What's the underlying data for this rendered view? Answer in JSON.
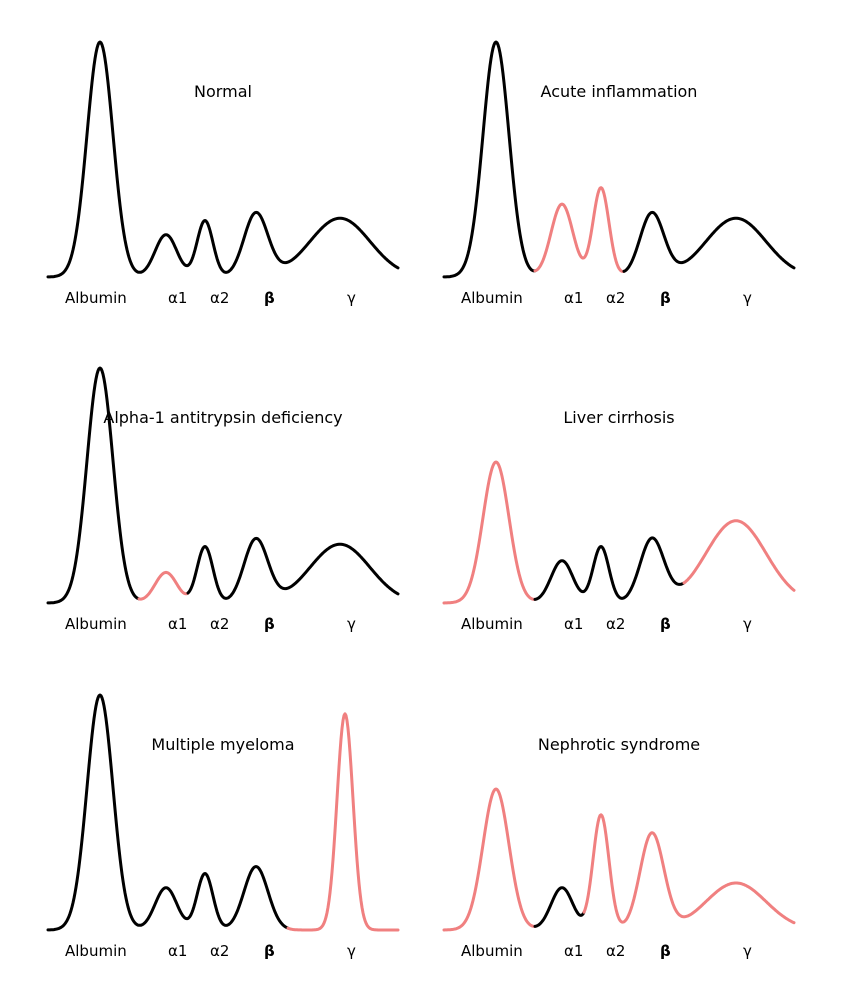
{
  "colors": {
    "normal": "#000000",
    "abnormal": "#f08080"
  },
  "band_labels": [
    "Albumin",
    "α1",
    "α2",
    "β",
    "γ"
  ],
  "panels": [
    {
      "title": "Normal",
      "peaks": {
        "albumin": 1.0,
        "alpha1": 0.18,
        "alpha2": 0.24,
        "beta": 0.27,
        "gamma": 0.25
      },
      "abnormal_bands": []
    },
    {
      "title": "Acute inflammation",
      "peaks": {
        "albumin": 1.0,
        "alpha1": 0.31,
        "alpha2": 0.38,
        "beta": 0.27,
        "gamma": 0.25
      },
      "abnormal_bands": [
        "alpha1",
        "alpha2"
      ]
    },
    {
      "title": "Alpha-1 antitrypsin deficiency",
      "peaks": {
        "albumin": 1.0,
        "alpha1": 0.13,
        "alpha2": 0.24,
        "beta": 0.27,
        "gamma": 0.25
      },
      "abnormal_bands": [
        "alpha1"
      ]
    },
    {
      "title": "Liver cirrhosis",
      "peaks": {
        "albumin": 0.6,
        "alpha1": 0.18,
        "alpha2": 0.24,
        "beta": 0.27,
        "gamma": 0.35
      },
      "abnormal_bands": [
        "albumin",
        "gamma"
      ]
    },
    {
      "title": "Multiple myeloma",
      "peaks": {
        "albumin": 1.0,
        "alpha1": 0.18,
        "alpha2": 0.24,
        "beta": 0.27,
        "gamma": 0.92
      },
      "abnormal_bands": [
        "gamma"
      ]
    },
    {
      "title": "Nephrotic syndrome",
      "peaks": {
        "albumin": 0.6,
        "alpha1": 0.18,
        "alpha2": 0.49,
        "beta": 0.41,
        "gamma": 0.2
      },
      "abnormal_bands": [
        "albumin",
        "alpha2",
        "beta",
        "gamma"
      ]
    }
  ]
}
